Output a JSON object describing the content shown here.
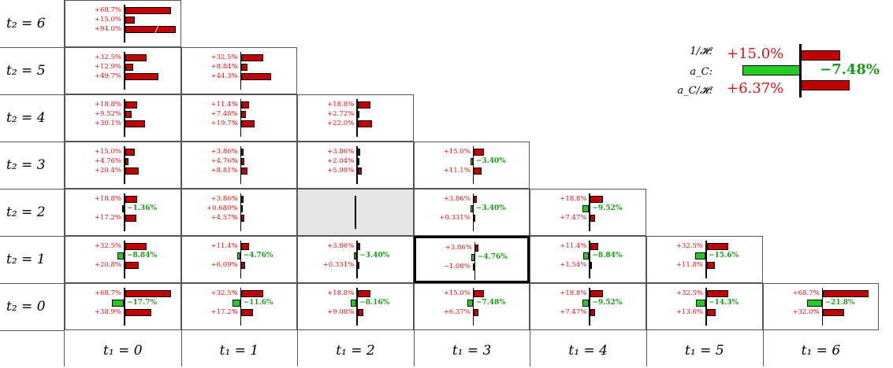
{
  "row_labels": [
    "t₂ = 6",
    "t₂ = 5",
    "t₂ = 4",
    "t₂ = 3",
    "t₂ = 2",
    "t₂ = 1",
    "t₂ = 0"
  ],
  "col_labels": [
    "t₁ = 0",
    "t₁ = 1",
    "t₁ = 2",
    "t₁ = 3",
    "t₁ = 4",
    "t₁ = 5",
    "t₁ = 6"
  ],
  "highlighted_cell": {
    "t1": 3,
    "t2": 1
  },
  "blank_cell": {
    "t1": 2,
    "t2": 2
  },
  "legend": {
    "labels": [
      "1/𝓗:",
      "a_C:",
      "a_C/𝓗:"
    ],
    "values": [
      "+15.0%",
      "−7.48%",
      "+6.37%"
    ],
    "bar_values": [
      15.0,
      -7.48,
      6.37
    ]
  },
  "cells": [
    {
      "t1": 0,
      "t2": 6,
      "labels": [
        "+68.7%",
        "+15.0%",
        "+94.0%"
      ],
      "values": [
        68.7,
        15.0,
        94.0
      ]
    },
    {
      "t1": 0,
      "t2": 5,
      "labels": [
        "+32.5%",
        "+12.9%",
        "+49.7%"
      ],
      "values": [
        32.5,
        12.9,
        49.7
      ]
    },
    {
      "t1": 1,
      "t2": 5,
      "labels": [
        "+32.5%",
        "+8.84%",
        "+44.3%"
      ],
      "values": [
        32.5,
        8.84,
        44.3
      ]
    },
    {
      "t1": 0,
      "t2": 4,
      "labels": [
        "+18.8%",
        "+9.52%",
        "+30.1%"
      ],
      "values": [
        18.8,
        9.52,
        30.1
      ]
    },
    {
      "t1": 1,
      "t2": 4,
      "labels": [
        "+11.4%",
        "+7.48%",
        "+19.7%"
      ],
      "values": [
        11.4,
        7.48,
        19.7
      ]
    },
    {
      "t1": 2,
      "t2": 4,
      "labels": [
        "+18.8%",
        "+2.72%",
        "+22.0%"
      ],
      "values": [
        18.8,
        2.72,
        22.0
      ]
    },
    {
      "t1": 0,
      "t2": 3,
      "labels": [
        "+15.0%",
        "+4.76%",
        "+20.4%"
      ],
      "values": [
        15.0,
        4.76,
        20.4
      ]
    },
    {
      "t1": 1,
      "t2": 3,
      "labels": [
        "+3.86%",
        "+4.76%",
        "+8.81%"
      ],
      "values": [
        3.86,
        4.76,
        8.81
      ]
    },
    {
      "t1": 2,
      "t2": 3,
      "labels": [
        "+3.86%",
        "+2.04%",
        "+5.98%"
      ],
      "values": [
        3.86,
        2.04,
        5.98
      ]
    },
    {
      "t1": 3,
      "t2": 3,
      "labels": [
        "+15.0%",
        "−3.40%",
        "+11.1%"
      ],
      "values": [
        15.0,
        -3.4,
        11.1
      ]
    },
    {
      "t1": 0,
      "t2": 2,
      "labels": [
        "+18.8%",
        "−1.36%",
        "+17.2%"
      ],
      "values": [
        18.8,
        -1.36,
        17.2
      ]
    },
    {
      "t1": 1,
      "t2": 2,
      "labels": [
        "+3.86%",
        "+0.680%",
        "+4.57%"
      ],
      "values": [
        3.86,
        0.68,
        4.57
      ]
    },
    {
      "t1": 3,
      "t2": 2,
      "labels": [
        "+3.86%",
        "−3.40%",
        "+0.331%"
      ],
      "values": [
        3.86,
        -3.4,
        0.331
      ]
    },
    {
      "t1": 4,
      "t2": 2,
      "labels": [
        "+18.8%",
        "−9.52%",
        "+7.47%"
      ],
      "values": [
        18.8,
        -9.52,
        7.47
      ]
    },
    {
      "t1": 0,
      "t2": 1,
      "labels": [
        "+32.5%",
        "−8.84%",
        "+20.8%"
      ],
      "values": [
        32.5,
        -8.84,
        20.8
      ]
    },
    {
      "t1": 1,
      "t2": 1,
      "labels": [
        "+11.4%",
        "−4.76%",
        "+6.09%"
      ],
      "values": [
        11.4,
        -4.76,
        6.09
      ]
    },
    {
      "t1": 2,
      "t2": 1,
      "labels": [
        "+3.86%",
        "−3.40%",
        "+0.331%"
      ],
      "values": [
        3.86,
        -3.4,
        0.331
      ]
    },
    {
      "t1": 3,
      "t2": 1,
      "labels": [
        "+3.86%",
        "−4.76%",
        "−1.08%"
      ],
      "values": [
        3.86,
        -4.76,
        -1.08
      ]
    },
    {
      "t1": 4,
      "t2": 1,
      "labels": [
        "+11.4%",
        "−8.84%",
        "+1.54%"
      ],
      "values": [
        11.4,
        -8.84,
        1.54
      ]
    },
    {
      "t1": 5,
      "t2": 1,
      "labels": [
        "+32.5%",
        "−15.6%",
        "+11.8%"
      ],
      "values": [
        32.5,
        -15.6,
        11.8
      ]
    },
    {
      "t1": 0,
      "t2": 0,
      "labels": [
        "+68.7%",
        "−17.7%",
        "+38.9%"
      ],
      "values": [
        68.7,
        -17.7,
        38.9
      ]
    },
    {
      "t1": 1,
      "t2": 0,
      "labels": [
        "+32.5%",
        "−11.6%",
        "+17.2%"
      ],
      "values": [
        32.5,
        -11.6,
        17.2
      ]
    },
    {
      "t1": 2,
      "t2": 0,
      "labels": [
        "+18.8%",
        "−8.16%",
        "+9.08%"
      ],
      "values": [
        18.8,
        -8.16,
        9.08
      ]
    },
    {
      "t1": 3,
      "t2": 0,
      "labels": [
        "+15.0%",
        "−7.48%",
        "+6.37%"
      ],
      "values": [
        15.0,
        -7.48,
        6.37
      ]
    },
    {
      "t1": 4,
      "t2": 0,
      "labels": [
        "+18.8%",
        "−9.52%",
        "+7.47%"
      ],
      "values": [
        18.8,
        -9.52,
        7.47
      ]
    },
    {
      "t1": 5,
      "t2": 0,
      "labels": [
        "+32.5%",
        "−14.3%",
        "+13.6%"
      ],
      "values": [
        32.5,
        -14.3,
        13.6
      ]
    },
    {
      "t1": 6,
      "t2": 0,
      "labels": [
        "+68.7%",
        "−21.8%",
        "+32.0%"
      ],
      "values": [
        68.7,
        -21.8,
        32.0
      ]
    }
  ],
  "colors": {
    "positive": "#c00000",
    "negative": "#22cc22",
    "positive_text": "#d11",
    "negative_text": "#1a9a1a"
  }
}
